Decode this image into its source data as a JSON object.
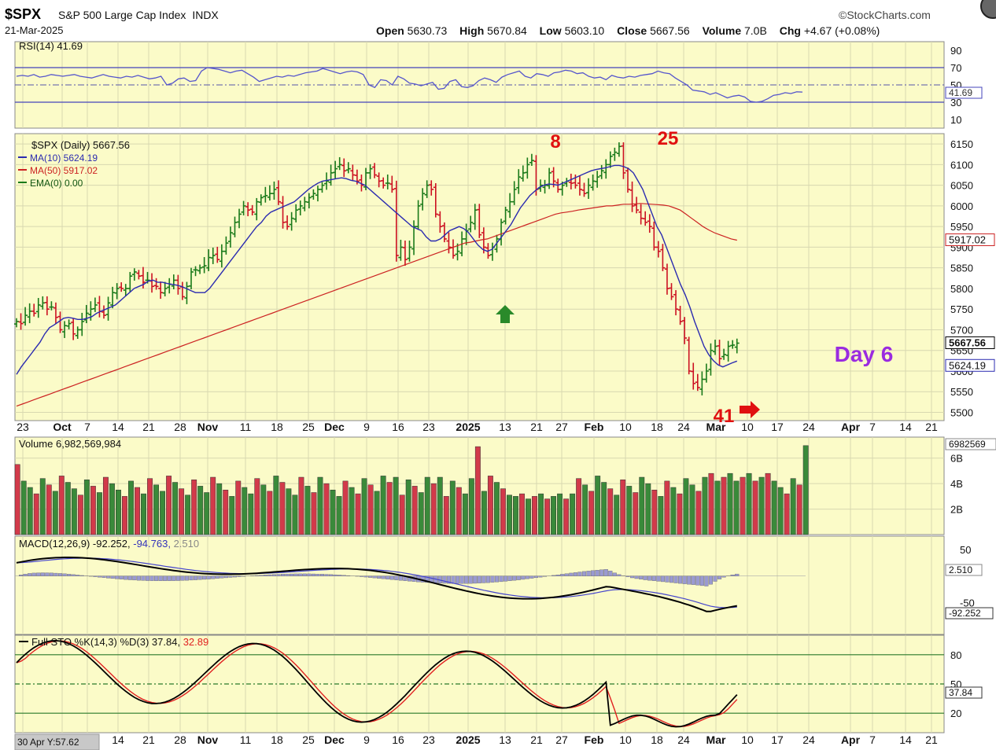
{
  "header": {
    "symbol": "$SPX",
    "name": "S&P 500 Large Cap Index",
    "exchange": "INDX",
    "date": "21-Mar-2025",
    "brand": "©StockCharts.com",
    "open_label": "Open",
    "open": "5630.73",
    "high_label": "High",
    "high": "5670.84",
    "low_label": "Low",
    "low": "5603.10",
    "close_label": "Close",
    "close": "5667.56",
    "volume_label": "Volume",
    "volume": "7.0B",
    "chg_label": "Chg",
    "chg": "+4.67 (+0.08%)"
  },
  "colors": {
    "background": "#fbfbc8",
    "up": "#1a7a1a",
    "down": "#cc1122",
    "ma10": "#2b2bb0",
    "ma50": "#cc2222",
    "rsi": "#5555cc",
    "annotation_red": "#e01010",
    "annotation_purple": "#9a2be0",
    "annotation_green": "#2a8a2a"
  },
  "time_axis": {
    "labels": [
      "23",
      "Oct",
      "7",
      "14",
      "21",
      "28",
      "Nov",
      "11",
      "18",
      "25",
      "Dec",
      "9",
      "16",
      "23",
      "2025",
      "13",
      "21",
      "27",
      "Feb",
      "10",
      "18",
      "24",
      "Mar",
      "10",
      "17",
      "24",
      "Apr",
      "7",
      "14",
      "21"
    ],
    "bold": [
      "Oct",
      "Nov",
      "Dec",
      "2025",
      "Feb",
      "Mar",
      "Apr"
    ],
    "bottom_labels": [
      "14",
      "21",
      "28",
      "Nov",
      "11",
      "18",
      "25",
      "Dec",
      "9",
      "16",
      "23",
      "2025",
      "13",
      "21",
      "27",
      "Feb",
      "10",
      "18",
      "24",
      "Mar",
      "10",
      "17",
      "24",
      "Apr",
      "7",
      "14",
      "21"
    ],
    "crosshair_readout": "30 Apr Y:57.62"
  },
  "chart_data": [
    {
      "panel": "rsi",
      "type": "line",
      "legend": "RSI(14) 41.69",
      "last_value": "41.69",
      "y_ticks": [
        90,
        70,
        50,
        30,
        10
      ],
      "ylim": [
        0,
        100
      ],
      "reference_lines": [
        70,
        50,
        30
      ],
      "values": [
        60,
        61,
        60,
        62,
        59,
        60,
        62,
        61,
        60,
        61,
        62,
        60,
        59,
        58,
        60,
        62,
        60,
        59,
        58,
        60,
        59,
        61,
        59,
        57,
        58,
        60,
        50,
        52,
        57,
        58,
        54,
        55,
        66,
        70,
        69,
        68,
        66,
        64,
        66,
        67,
        63,
        59,
        54,
        56,
        58,
        60,
        59,
        61,
        60,
        62,
        64,
        65,
        66,
        69,
        67,
        65,
        63,
        65,
        66,
        65,
        62,
        50,
        47,
        56,
        55,
        50,
        60,
        57,
        52,
        51,
        49,
        51,
        53,
        45,
        46,
        54,
        56,
        48,
        47,
        49,
        55,
        58,
        56,
        53,
        59,
        62,
        64,
        66,
        60,
        58,
        63,
        62,
        60,
        64,
        65,
        67,
        66,
        63,
        64,
        60,
        58,
        59,
        56,
        61,
        59,
        58,
        60,
        59,
        61,
        62,
        63,
        66,
        64,
        63,
        58,
        54,
        50,
        44,
        43,
        42,
        39,
        41,
        38,
        35,
        37,
        38,
        36,
        31,
        30,
        31,
        34,
        38,
        39,
        41,
        40,
        42,
        41.69
      ]
    },
    {
      "panel": "price",
      "type": "ohlc",
      "legend": "$SPX (Daily) 5667.56",
      "legend_ma10": "MA(10) 5624.19",
      "legend_ma50": "MA(50) 5917.02",
      "legend_ema": "EMA(0) 0.00",
      "price_labels": {
        "close": "5667.56",
        "ma10": "5624.19",
        "ma50": "5917.02"
      },
      "y_ticks": [
        6150,
        6100,
        6050,
        6000,
        5950,
        5900,
        5850,
        5800,
        5750,
        5700,
        5650,
        5600,
        5550,
        5500
      ],
      "ylim": [
        5480,
        6175
      ],
      "close": [
        5720,
        5715,
        5735,
        5745,
        5740,
        5760,
        5765,
        5750,
        5755,
        5730,
        5700,
        5710,
        5715,
        5690,
        5700,
        5720,
        5740,
        5750,
        5760,
        5745,
        5735,
        5765,
        5790,
        5800,
        5800,
        5800,
        5830,
        5840,
        5830,
        5815,
        5820,
        5805,
        5805,
        5790,
        5800,
        5810,
        5820,
        5800,
        5780,
        5805,
        5840,
        5845,
        5850,
        5855,
        5875,
        5880,
        5870,
        5890,
        5910,
        5935,
        5960,
        5980,
        6000,
        5990,
        5985,
        6010,
        6020,
        6025,
        6030,
        6040,
        6010,
        5960,
        5950,
        5970,
        5990,
        6000,
        6010,
        6020,
        6030,
        6040,
        6050,
        6060,
        6080,
        6090,
        6100,
        6085,
        6090,
        6075,
        6060,
        6050,
        6080,
        6090,
        6075,
        6060,
        6050,
        6055,
        6040,
        5880,
        5900,
        5870,
        5900,
        5950,
        6000,
        6030,
        6050,
        6040,
        5980,
        5950,
        5920,
        5900,
        5880,
        5890,
        5920,
        5940,
        5960,
        5990,
        5930,
        5900,
        5880,
        5900,
        5920,
        5960,
        5990,
        6010,
        6040,
        6070,
        6080,
        6100,
        6110,
        6040,
        6050,
        6050,
        6080,
        6060,
        6040,
        6050,
        6060,
        6055,
        6050,
        6040,
        6030,
        6050,
        6060,
        6070,
        6085,
        6100,
        6120,
        6130,
        6144,
        6080,
        6040,
        6000,
        5990,
        5970,
        5960,
        5950,
        5900,
        5890,
        5850,
        5800,
        5780,
        5750,
        5720,
        5680,
        5600,
        5570,
        5560,
        5580,
        5600,
        5650,
        5660,
        5630,
        5640,
        5660,
        5662.89,
        5667.56
      ],
      "ma10": [
        5592,
        5610,
        5625,
        5640,
        5655,
        5670,
        5690,
        5705,
        5712,
        5720,
        5728,
        5730,
        5728,
        5725,
        5725,
        5728,
        5732,
        5740,
        5745,
        5750,
        5755,
        5760,
        5770,
        5780,
        5790,
        5800,
        5805,
        5810,
        5818,
        5820,
        5815,
        5815,
        5812,
        5810,
        5808,
        5805,
        5800,
        5795,
        5790,
        5790,
        5790,
        5800,
        5815,
        5830,
        5845,
        5860,
        5875,
        5890,
        5905,
        5920,
        5935,
        5950,
        5960,
        5975,
        5985,
        5990,
        5995,
        6000,
        6005,
        6010,
        6020,
        6030,
        6040,
        6048,
        6055,
        6060,
        6062,
        6064,
        6066,
        6068,
        6066,
        6062,
        6060,
        6055,
        6050,
        6040,
        6030,
        6020,
        6010,
        6000,
        5990,
        5980,
        5970,
        5960,
        5950,
        5945,
        5940,
        5925,
        5915,
        5915,
        5920,
        5930,
        5940,
        5945,
        5950,
        5945,
        5935,
        5920,
        5905,
        5895,
        5890,
        5895,
        5910,
        5925,
        5940,
        5955,
        5975,
        5995,
        6010,
        6025,
        6035,
        6045,
        6050,
        6053,
        6052,
        6050,
        6055,
        6060,
        6065,
        6070,
        6075,
        6080,
        6085,
        6088,
        6090,
        6092,
        6095,
        6098,
        6098,
        6095,
        6090,
        6080,
        6060,
        6040,
        6010,
        5980,
        5950,
        5930,
        5900,
        5870,
        5840,
        5810,
        5785,
        5755,
        5720,
        5690,
        5660,
        5640,
        5625,
        5615,
        5610,
        5615,
        5620,
        5624.19
      ],
      "ma50": [
        5515,
        5520,
        5525,
        5530,
        5535,
        5540,
        5545,
        5550,
        5555,
        5560,
        5565,
        5570,
        5575,
        5580,
        5585,
        5590,
        5595,
        5600,
        5605,
        5610,
        5615,
        5620,
        5625,
        5630,
        5635,
        5640,
        5645,
        5650,
        5655,
        5660,
        5665,
        5670,
        5675,
        5680,
        5685,
        5690,
        5695,
        5700,
        5705,
        5710,
        5715,
        5720,
        5725,
        5730,
        5735,
        5740,
        5745,
        5750,
        5755,
        5760,
        5765,
        5770,
        5775,
        5780,
        5785,
        5790,
        5795,
        5800,
        5805,
        5810,
        5815,
        5820,
        5825,
        5830,
        5835,
        5840,
        5845,
        5850,
        5855,
        5860,
        5865,
        5870,
        5875,
        5880,
        5885,
        5890,
        5895,
        5900,
        5905,
        5910,
        5912,
        5915,
        5918,
        5920,
        5925,
        5930,
        5935,
        5940,
        5945,
        5950,
        5955,
        5960,
        5965,
        5970,
        5975,
        5980,
        5983,
        5985,
        5987,
        5990,
        5992,
        5994,
        5996,
        5998,
        6000,
        6000,
        6002,
        6004,
        6004,
        6005,
        6006,
        6005,
        6004,
        6003,
        6002,
        6000,
        5995,
        5990,
        5980,
        5970,
        5960,
        5950,
        5942,
        5935,
        5930,
        5925,
        5920,
        5917.02
      ],
      "annotations": [
        {
          "text": "8",
          "color": "red"
        },
        {
          "text": "25",
          "color": "red"
        },
        {
          "text": "41",
          "color": "red"
        },
        {
          "text": "Day 6",
          "color": "purple"
        }
      ]
    },
    {
      "panel": "volume",
      "type": "bar",
      "legend": "Volume 6,982,569,984",
      "last_value": "6982569",
      "y_ticks": [
        "6B",
        "4B",
        "2B"
      ],
      "ylim": [
        0,
        7.4
      ],
      "unit": "billions"
    },
    {
      "panel": "macd",
      "type": "line",
      "legend_prefix": "MACD(12,26,9)",
      "macd_value": "-92.252",
      "signal_value": "-94.763",
      "hist_value": "2.510",
      "y_ticks": [
        "50",
        "-50"
      ],
      "ylim": [
        -110,
        75
      ],
      "last_labels": {
        "hist": "2.510",
        "macd": "-92.252"
      }
    },
    {
      "panel": "stochastic",
      "type": "line",
      "legend_prefix": "Full STO %K(14,3) %D(3)",
      "k_value": "37.84",
      "d_value": "32.89",
      "last_label": "37.84",
      "y_ticks": [
        "80",
        "50",
        "20"
      ],
      "ylim": [
        0,
        100
      ],
      "reference_lines": [
        80,
        50,
        20
      ]
    }
  ]
}
